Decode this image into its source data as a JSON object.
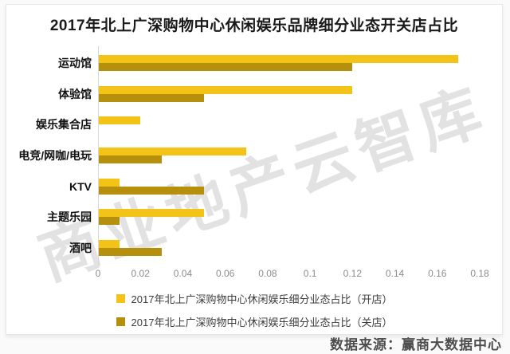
{
  "title": "2017年北上广深购物中心休闲娱乐品牌细分业态开关店占比",
  "watermark": "商业地产云智库",
  "source": "数据来源：赢商大数据中心",
  "colors": {
    "open_bar": "#F3C317",
    "close_bar": "#B68F0C",
    "axis_line": "#D6D6D6",
    "tick_text": "#8C8C8C",
    "watermark": "#D9D9D9"
  },
  "legend": {
    "open": "2017年北上广深购物中心休闲娱乐细分业态占比（开店）",
    "close": "2017年北上广深购物中心休闲娱乐细分业态占比（关店）"
  },
  "chart_data": {
    "type": "bar",
    "orientation": "horizontal",
    "title": "2017年北上广深购物中心休闲娱乐品牌细分业态开关店占比",
    "categories": [
      "运动馆",
      "体验馆",
      "娱乐集合店",
      "电竞/网咖/电玩",
      "KTV",
      "主题乐园",
      "酒吧"
    ],
    "series": [
      {
        "name": "2017年北上广深购物中心休闲娱乐细分业态占比（开店）",
        "color": "#F3C317",
        "values": [
          0.17,
          0.12,
          0.02,
          0.07,
          0.01,
          0.05,
          0.01
        ]
      },
      {
        "name": "2017年北上广深购物中心休闲娱乐细分业态占比（关店）",
        "color": "#B68F0C",
        "values": [
          0.12,
          0.05,
          0,
          0.03,
          0.05,
          0.01,
          0.03
        ]
      }
    ],
    "xlim": [
      0,
      0.18
    ],
    "x_ticks": [
      "0",
      "0.02",
      "0.04",
      "0.06",
      "0.08",
      "0.1",
      "0.12",
      "0.14",
      "0.16",
      "0.18"
    ],
    "grid": false,
    "legend_position": "bottom"
  }
}
